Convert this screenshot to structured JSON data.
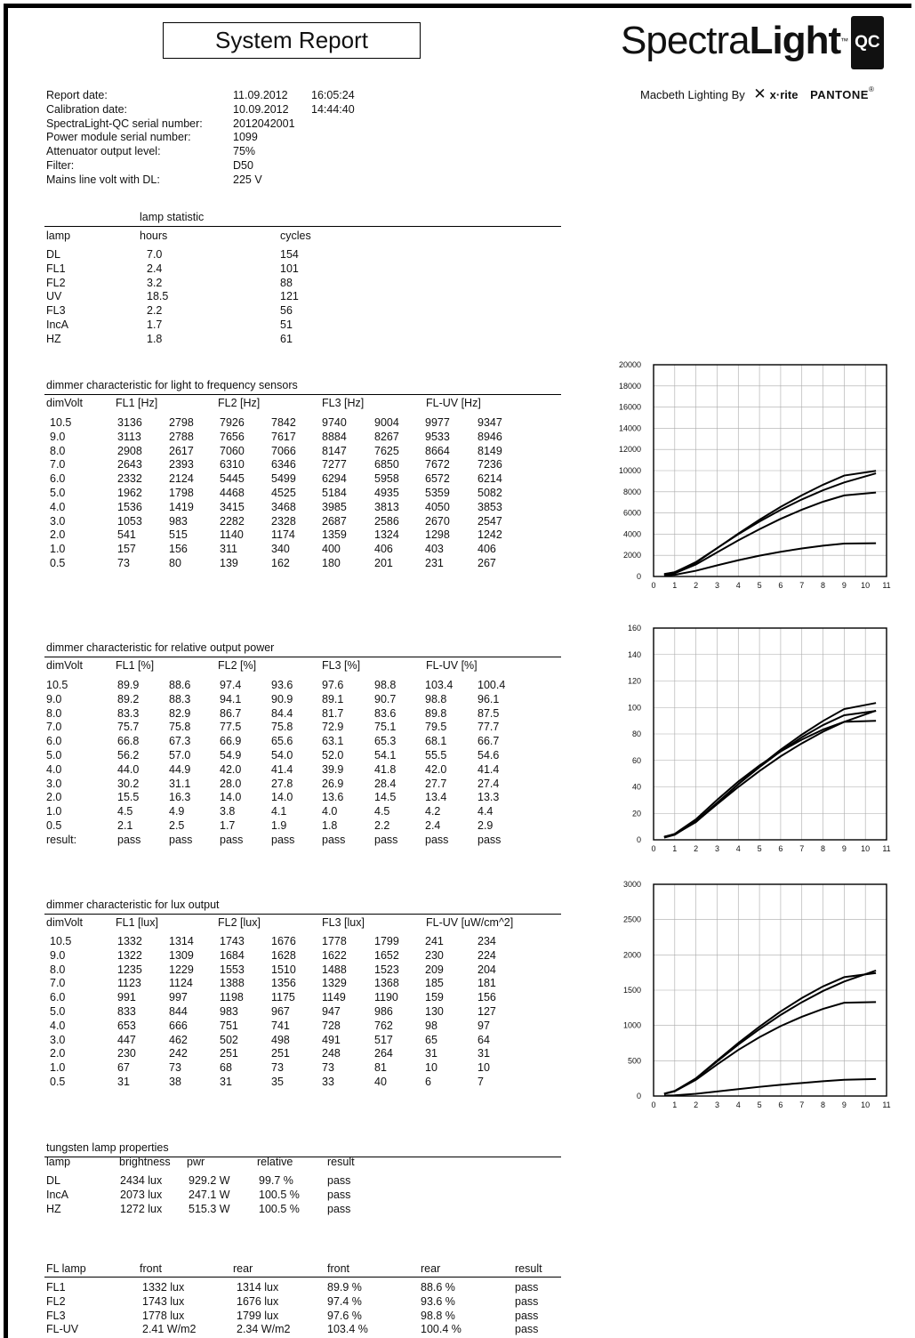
{
  "report": {
    "title": "System Report",
    "logo_main": "Spectra",
    "logo_bold": "Light",
    "logo_tm": "™",
    "logo_badge": "QC",
    "sub_macbeth": "Macbeth Lighting By",
    "sub_xrite_icon": "x-rite-logo-icon",
    "sub_xrite_mark": "✕",
    "sub_xrite": "x·rite",
    "sub_pantone": "PANTONE",
    "sub_pantone_reg": "®"
  },
  "info": [
    {
      "label": "Report date:",
      "v1": "11.09.2012",
      "v2": "16:05:24"
    },
    {
      "label": "Calibration date:",
      "v1": "10.09.2012",
      "v2": "14:44:40"
    },
    {
      "label": "SpectraLight-QC serial number:",
      "v1": "2012042001",
      "v2": ""
    },
    {
      "label": "Power module serial number:",
      "v1": "1099",
      "v2": ""
    },
    {
      "label": "Attenuator output level:",
      "v1": "75%",
      "v2": ""
    },
    {
      "label": "Filter:",
      "v1": "D50",
      "v2": ""
    },
    {
      "label": "Mains line volt with DL:",
      "v1": "225 V",
      "v2": ""
    }
  ],
  "lamp_statistic": {
    "title": "lamp statistic",
    "headers": [
      "lamp",
      "hours",
      "cycles"
    ],
    "rows": [
      [
        "DL",
        "7.0",
        "154"
      ],
      [
        "FL1",
        "2.4",
        "101"
      ],
      [
        "FL2",
        "3.2",
        "88"
      ],
      [
        "UV",
        "18.5",
        "121"
      ],
      [
        "FL3",
        "2.2",
        "56"
      ],
      [
        "IncA",
        "1.7",
        "51"
      ],
      [
        "HZ",
        "1.8",
        "61"
      ]
    ]
  },
  "freq": {
    "title": "dimmer characteristic for light to frequency sensors",
    "headers": [
      "dimVolt",
      "FL1 [Hz]",
      "FL2 [Hz]",
      "FL3 [Hz]",
      "FL-UV [Hz]"
    ],
    "rows": [
      [
        "10.5",
        "3136",
        "2798",
        "7926",
        "7842",
        "9740",
        "9004",
        "9977",
        "9347"
      ],
      [
        "9.0",
        "3113",
        "2788",
        "7656",
        "7617",
        "8884",
        "8267",
        "9533",
        "8946"
      ],
      [
        "8.0",
        "2908",
        "2617",
        "7060",
        "7066",
        "8147",
        "7625",
        "8664",
        "8149"
      ],
      [
        "7.0",
        "2643",
        "2393",
        "6310",
        "6346",
        "7277",
        "6850",
        "7672",
        "7236"
      ],
      [
        "6.0",
        "2332",
        "2124",
        "5445",
        "5499",
        "6294",
        "5958",
        "6572",
        "6214"
      ],
      [
        "5.0",
        "1962",
        "1798",
        "4468",
        "4525",
        "5184",
        "4935",
        "5359",
        "5082"
      ],
      [
        "4.0",
        "1536",
        "1419",
        "3415",
        "3468",
        "3985",
        "3813",
        "4050",
        "3853"
      ],
      [
        "3.0",
        "1053",
        "983",
        "2282",
        "2328",
        "2687",
        "2586",
        "2670",
        "2547"
      ],
      [
        "2.0",
        "541",
        "515",
        "1140",
        "1174",
        "1359",
        "1324",
        "1298",
        "1242"
      ],
      [
        "1.0",
        "157",
        "156",
        "311",
        "340",
        "400",
        "406",
        "403",
        "406"
      ],
      [
        "0.5",
        "73",
        "80",
        "139",
        "162",
        "180",
        "201",
        "231",
        "267"
      ]
    ]
  },
  "power": {
    "title": "dimmer characteristic for relative output power",
    "headers": [
      "dimVolt",
      "FL1 [%]",
      "FL2 [%]",
      "FL3 [%]",
      "FL-UV [%]"
    ],
    "rows": [
      [
        "10.5",
        "89.9",
        "88.6",
        "97.4",
        "93.6",
        "97.6",
        "98.8",
        "103.4",
        "100.4"
      ],
      [
        "9.0",
        "89.2",
        "88.3",
        "94.1",
        "90.9",
        "89.1",
        "90.7",
        "98.8",
        "96.1"
      ],
      [
        "8.0",
        "83.3",
        "82.9",
        "86.7",
        "84.4",
        "81.7",
        "83.6",
        "89.8",
        "87.5"
      ],
      [
        "7.0",
        "75.7",
        "75.8",
        "77.5",
        "75.8",
        "72.9",
        "75.1",
        "79.5",
        "77.7"
      ],
      [
        "6.0",
        "66.8",
        "67.3",
        "66.9",
        "65.6",
        "63.1",
        "65.3",
        "68.1",
        "66.7"
      ],
      [
        "5.0",
        "56.2",
        "57.0",
        "54.9",
        "54.0",
        "52.0",
        "54.1",
        "55.5",
        "54.6"
      ],
      [
        "4.0",
        "44.0",
        "44.9",
        "42.0",
        "41.4",
        "39.9",
        "41.8",
        "42.0",
        "41.4"
      ],
      [
        "3.0",
        "30.2",
        "31.1",
        "28.0",
        "27.8",
        "26.9",
        "28.4",
        "27.7",
        "27.4"
      ],
      [
        "2.0",
        "15.5",
        "16.3",
        "14.0",
        "14.0",
        "13.6",
        "14.5",
        "13.4",
        "13.3"
      ],
      [
        "1.0",
        "4.5",
        "4.9",
        "3.8",
        "4.1",
        "4.0",
        "4.5",
        "4.2",
        "4.4"
      ],
      [
        "0.5",
        "2.1",
        "2.5",
        "1.7",
        "1.9",
        "1.8",
        "2.2",
        "2.4",
        "2.9"
      ],
      [
        "result:",
        "pass",
        "pass",
        "pass",
        "pass",
        "pass",
        "pass",
        "pass",
        "pass"
      ]
    ]
  },
  "lux": {
    "title": "dimmer characteristic for lux output",
    "headers": [
      "dimVolt",
      "FL1 [lux]",
      "FL2 [lux]",
      "FL3 [lux]",
      "FL-UV [uW/cm^2]"
    ],
    "rows": [
      [
        "10.5",
        "1332",
        "1314",
        "1743",
        "1676",
        "1778",
        "1799",
        "241",
        "234"
      ],
      [
        "9.0",
        "1322",
        "1309",
        "1684",
        "1628",
        "1622",
        "1652",
        "230",
        "224"
      ],
      [
        "8.0",
        "1235",
        "1229",
        "1553",
        "1510",
        "1488",
        "1523",
        "209",
        "204"
      ],
      [
        "7.0",
        "1123",
        "1124",
        "1388",
        "1356",
        "1329",
        "1368",
        "185",
        "181"
      ],
      [
        "6.0",
        "991",
        "997",
        "1198",
        "1175",
        "1149",
        "1190",
        "159",
        "156"
      ],
      [
        "5.0",
        "833",
        "844",
        "983",
        "967",
        "947",
        "986",
        "130",
        "127"
      ],
      [
        "4.0",
        "653",
        "666",
        "751",
        "741",
        "728",
        "762",
        "98",
        "97"
      ],
      [
        "3.0",
        "447",
        "462",
        "502",
        "498",
        "491",
        "517",
        "65",
        "64"
      ],
      [
        "2.0",
        "230",
        "242",
        "251",
        "251",
        "248",
        "264",
        "31",
        "31"
      ],
      [
        "1.0",
        "67",
        "73",
        "68",
        "73",
        "73",
        "81",
        "10",
        "10"
      ],
      [
        "0.5",
        "31",
        "38",
        "31",
        "35",
        "33",
        "40",
        "6",
        "7"
      ]
    ]
  },
  "tungsten": {
    "title": "tungsten lamp properties",
    "headers": [
      "lamp",
      "brightness",
      "pwr",
      "relative",
      "result"
    ],
    "rows": [
      [
        "DL",
        "2434 lux",
        "929.2 W",
        "99.7 %",
        "pass"
      ],
      [
        "IncA",
        "2073 lux",
        "247.1 W",
        "100.5 %",
        "pass"
      ],
      [
        "HZ",
        "1272 lux",
        "515.3 W",
        "100.5 %",
        "pass"
      ]
    ]
  },
  "fl_lamp": {
    "headers": [
      "FL lamp",
      "front",
      "rear",
      "front",
      "rear",
      "result"
    ],
    "rows": [
      [
        "FL1",
        "1332 lux",
        "1314 lux",
        "89.9 %",
        "88.6 %",
        "pass"
      ],
      [
        "FL2",
        "1743 lux",
        "1676 lux",
        "97.4 %",
        "93.6 %",
        "pass"
      ],
      [
        "FL3",
        "1778 lux",
        "1799 lux",
        "97.6 %",
        "98.8 %",
        "pass"
      ],
      [
        "FL-UV",
        "2.41 W/m2",
        "2.34 W/m2",
        "103.4 %",
        "100.4 %",
        "pass"
      ]
    ]
  },
  "chart_data": [
    {
      "type": "line",
      "x": [
        0.5,
        1,
        2,
        3,
        4,
        5,
        6,
        7,
        8,
        9,
        10.5
      ],
      "xlim": [
        0,
        11
      ],
      "ylim": [
        0,
        20000
      ],
      "xticks": [
        "0",
        "1",
        "2",
        "3",
        "4",
        "5",
        "6",
        "7",
        "8",
        "9",
        "10",
        "11"
      ],
      "yticks": [
        "0",
        "2000",
        "4000",
        "6000",
        "8000",
        "10000",
        "12000",
        "14000",
        "16000",
        "18000",
        "20000"
      ],
      "grid": true,
      "series": [
        {
          "values": [
            73,
            157,
            541,
            1053,
            1536,
            1962,
            2332,
            2643,
            2908,
            3113,
            3136
          ]
        },
        {
          "values": [
            139,
            311,
            1140,
            2282,
            3415,
            4468,
            5445,
            6310,
            7060,
            7656,
            7926
          ]
        },
        {
          "values": [
            180,
            400,
            1359,
            2687,
            3985,
            5184,
            6294,
            7277,
            8147,
            8884,
            9740
          ]
        },
        {
          "values": [
            231,
            403,
            1298,
            2670,
            4050,
            5359,
            6572,
            7672,
            8664,
            9533,
            9977
          ]
        }
      ]
    },
    {
      "type": "line",
      "x": [
        0.5,
        1,
        2,
        3,
        4,
        5,
        6,
        7,
        8,
        9,
        10.5
      ],
      "xlim": [
        0,
        11
      ],
      "ylim": [
        0,
        160
      ],
      "xticks": [
        "0",
        "1",
        "2",
        "3",
        "4",
        "5",
        "6",
        "7",
        "8",
        "9",
        "10",
        "11"
      ],
      "yticks": [
        "0",
        "20",
        "40",
        "60",
        "80",
        "100",
        "120",
        "140",
        "160"
      ],
      "grid": true,
      "series": [
        {
          "values": [
            2.1,
            4.5,
            15.5,
            30.2,
            44.0,
            56.2,
            66.8,
            75.7,
            83.3,
            89.2,
            89.9
          ]
        },
        {
          "values": [
            1.7,
            3.8,
            14.0,
            28.0,
            42.0,
            54.9,
            66.9,
            77.5,
            86.7,
            94.1,
            97.4
          ]
        },
        {
          "values": [
            1.8,
            4.0,
            13.6,
            26.9,
            39.9,
            52.0,
            63.1,
            72.9,
            81.7,
            89.1,
            97.6
          ]
        },
        {
          "values": [
            2.4,
            4.2,
            13.4,
            27.7,
            42.0,
            55.5,
            68.1,
            79.5,
            89.8,
            98.8,
            103.4
          ]
        }
      ]
    },
    {
      "type": "line",
      "x": [
        0.5,
        1,
        2,
        3,
        4,
        5,
        6,
        7,
        8,
        9,
        10.5
      ],
      "xlim": [
        0,
        11
      ],
      "ylim": [
        0,
        3000
      ],
      "xticks": [
        "0",
        "1",
        "2",
        "3",
        "4",
        "5",
        "6",
        "7",
        "8",
        "9",
        "10",
        "11"
      ],
      "yticks": [
        "0",
        "500",
        "1000",
        "1500",
        "2000",
        "2500",
        "3000"
      ],
      "grid": true,
      "series": [
        {
          "values": [
            31,
            67,
            230,
            447,
            653,
            833,
            991,
            1123,
            1235,
            1322,
            1332
          ]
        },
        {
          "values": [
            31,
            68,
            251,
            502,
            751,
            983,
            1198,
            1388,
            1553,
            1684,
            1743
          ]
        },
        {
          "values": [
            33,
            73,
            248,
            491,
            728,
            947,
            1149,
            1329,
            1488,
            1622,
            1778
          ]
        },
        {
          "values": [
            6,
            10,
            31,
            65,
            98,
            130,
            159,
            185,
            209,
            230,
            241
          ]
        }
      ]
    }
  ]
}
